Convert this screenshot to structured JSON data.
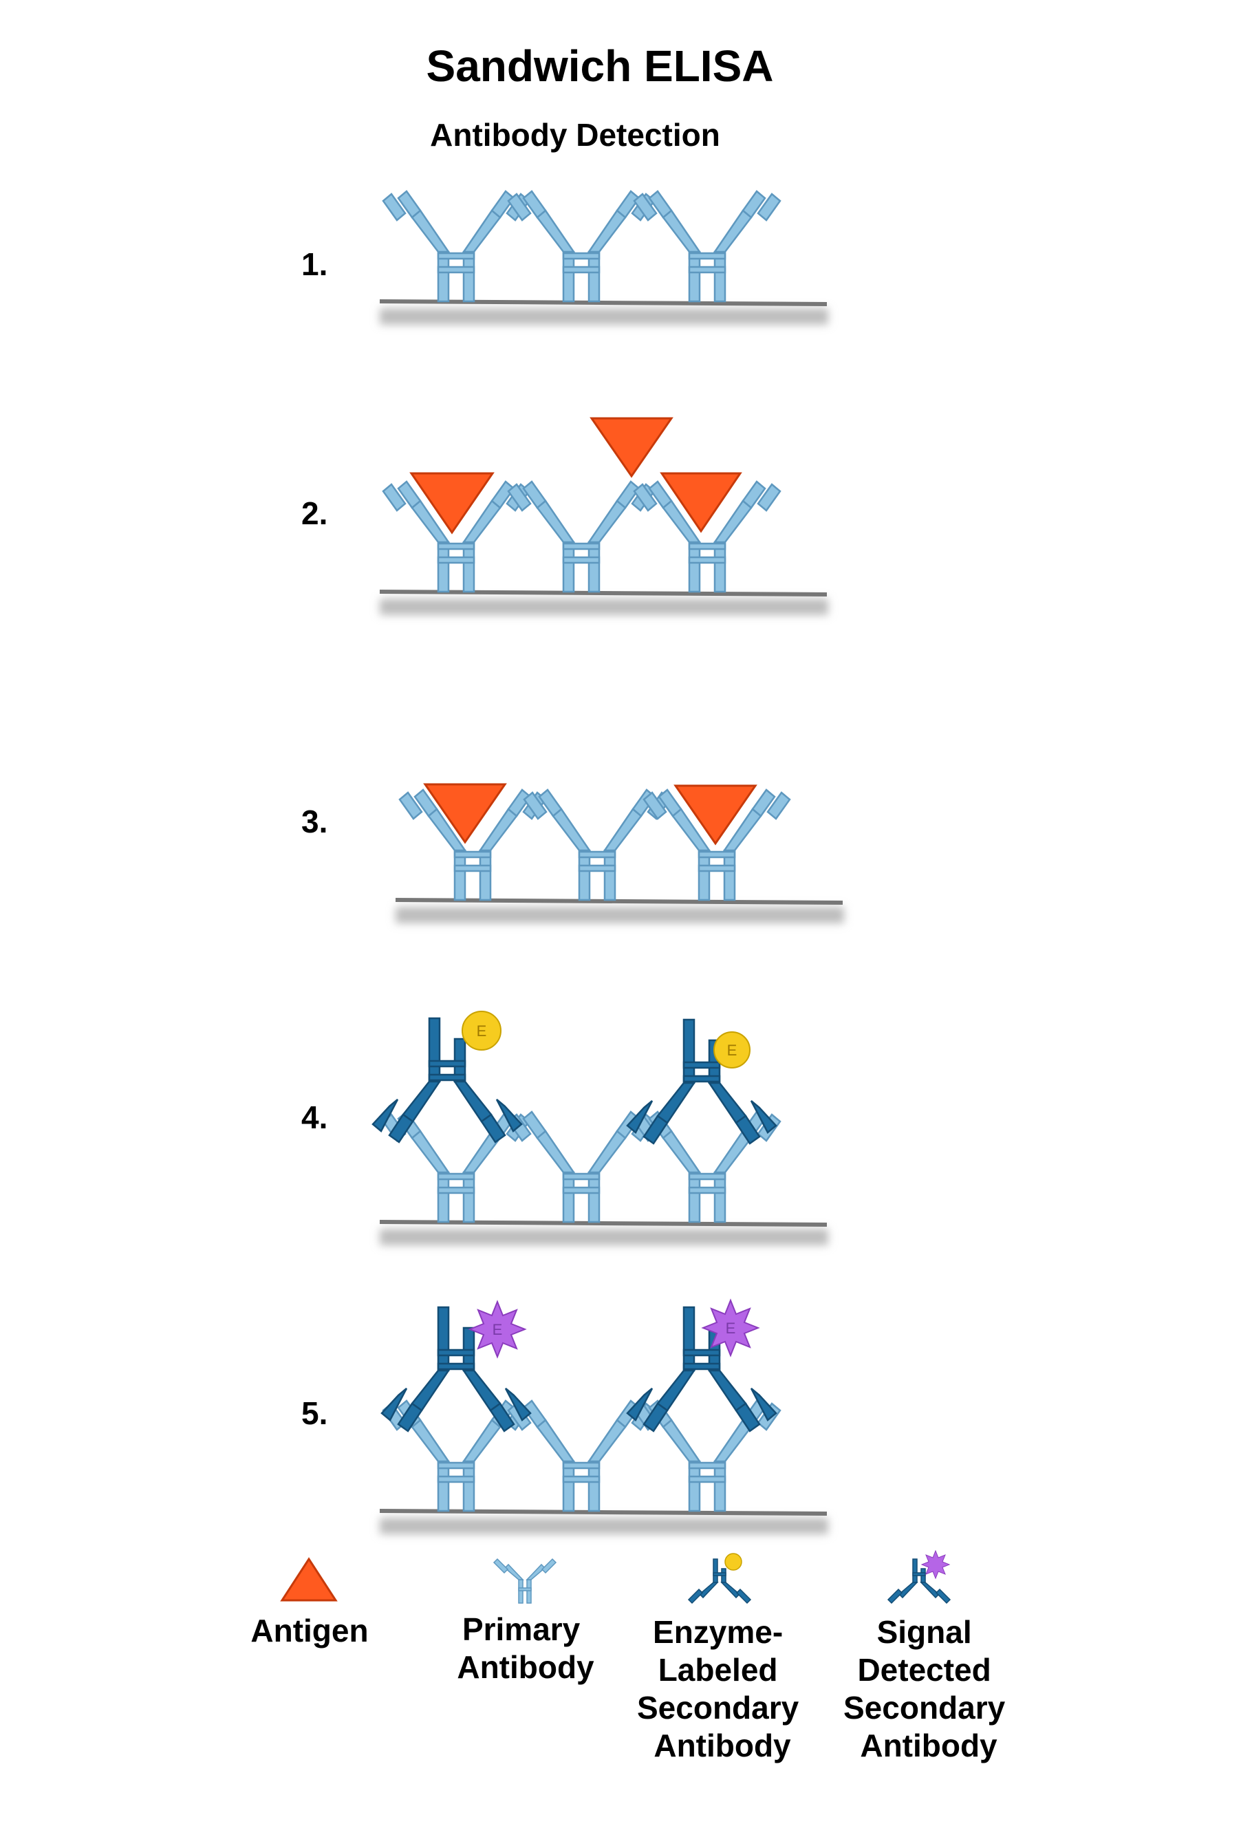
{
  "title": "Sandwich ELISA",
  "subtitle": "Antibody Detection",
  "steps": [
    {
      "label": "1."
    },
    {
      "label": "2."
    },
    {
      "label": "3."
    },
    {
      "label": "4."
    },
    {
      "label": "5."
    }
  ],
  "enzyme_letter": "E",
  "legend": {
    "antigen": [
      "Antigen"
    ],
    "primary": [
      "Primary",
      "Antibody"
    ],
    "enzyme": [
      "Enzyme-",
      "Labeled",
      "Secondary",
      "Antibody"
    ],
    "signal": [
      "Signal",
      "Detected",
      "Secondary",
      "Antibody"
    ]
  },
  "colors": {
    "primary_antibody": "#8fc3e2",
    "secondary_antibody": "#1f6fa3",
    "antigen": "#ff5a1f",
    "enzyme": "#f6cc1f",
    "signal": "#b565e6",
    "surface": "#777777"
  }
}
